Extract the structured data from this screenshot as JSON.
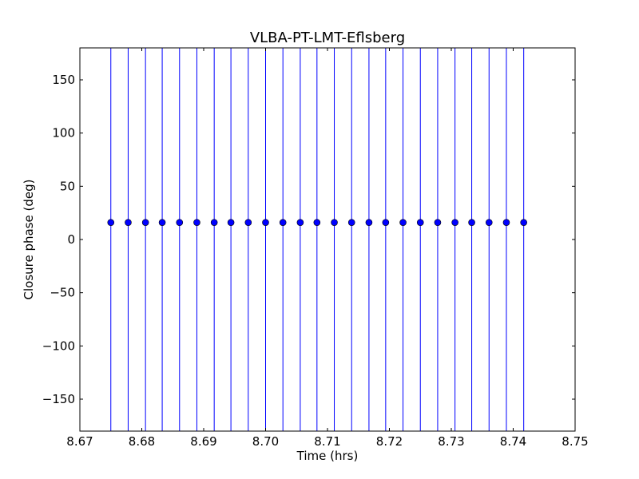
{
  "chart_data": {
    "type": "scatter",
    "title": "VLBA-PT-LMT-Eflsberg",
    "xlabel": "Time (hrs)",
    "ylabel": "Closure phase (deg)",
    "xlim": [
      8.67,
      8.75
    ],
    "ylim": [
      -180,
      180
    ],
    "xticks": [
      8.67,
      8.68,
      8.69,
      8.7,
      8.71,
      8.72,
      8.73,
      8.74,
      8.75
    ],
    "xtick_labels": [
      "8.67",
      "8.68",
      "8.69",
      "8.70",
      "8.71",
      "8.72",
      "8.73",
      "8.74",
      "8.75"
    ],
    "yticks": [
      150,
      100,
      50,
      0,
      -50,
      -100,
      -150
    ],
    "ytick_labels": [
      "150",
      "100",
      "50",
      "0",
      "−50",
      "−100",
      "−150"
    ],
    "grid": false,
    "legend": "none",
    "series": [
      {
        "color": "#0000ff",
        "marker": "circle",
        "error_bars": "vertical, spanning full y range",
        "x": [
          8.675,
          8.6778,
          8.6806,
          8.6833,
          8.6861,
          8.6889,
          8.6917,
          8.6944,
          8.6972,
          8.7,
          8.7028,
          8.7056,
          8.7083,
          8.7111,
          8.7139,
          8.7167,
          8.7194,
          8.7222,
          8.725,
          8.7278,
          8.7306,
          8.7333,
          8.7361,
          8.7389,
          8.7417
        ],
        "y": [
          16,
          16,
          16,
          16,
          16,
          16,
          16,
          16,
          16,
          16,
          16,
          16,
          16,
          16,
          16,
          16,
          16,
          16,
          16,
          16,
          16,
          16,
          16,
          16,
          16
        ]
      }
    ]
  }
}
